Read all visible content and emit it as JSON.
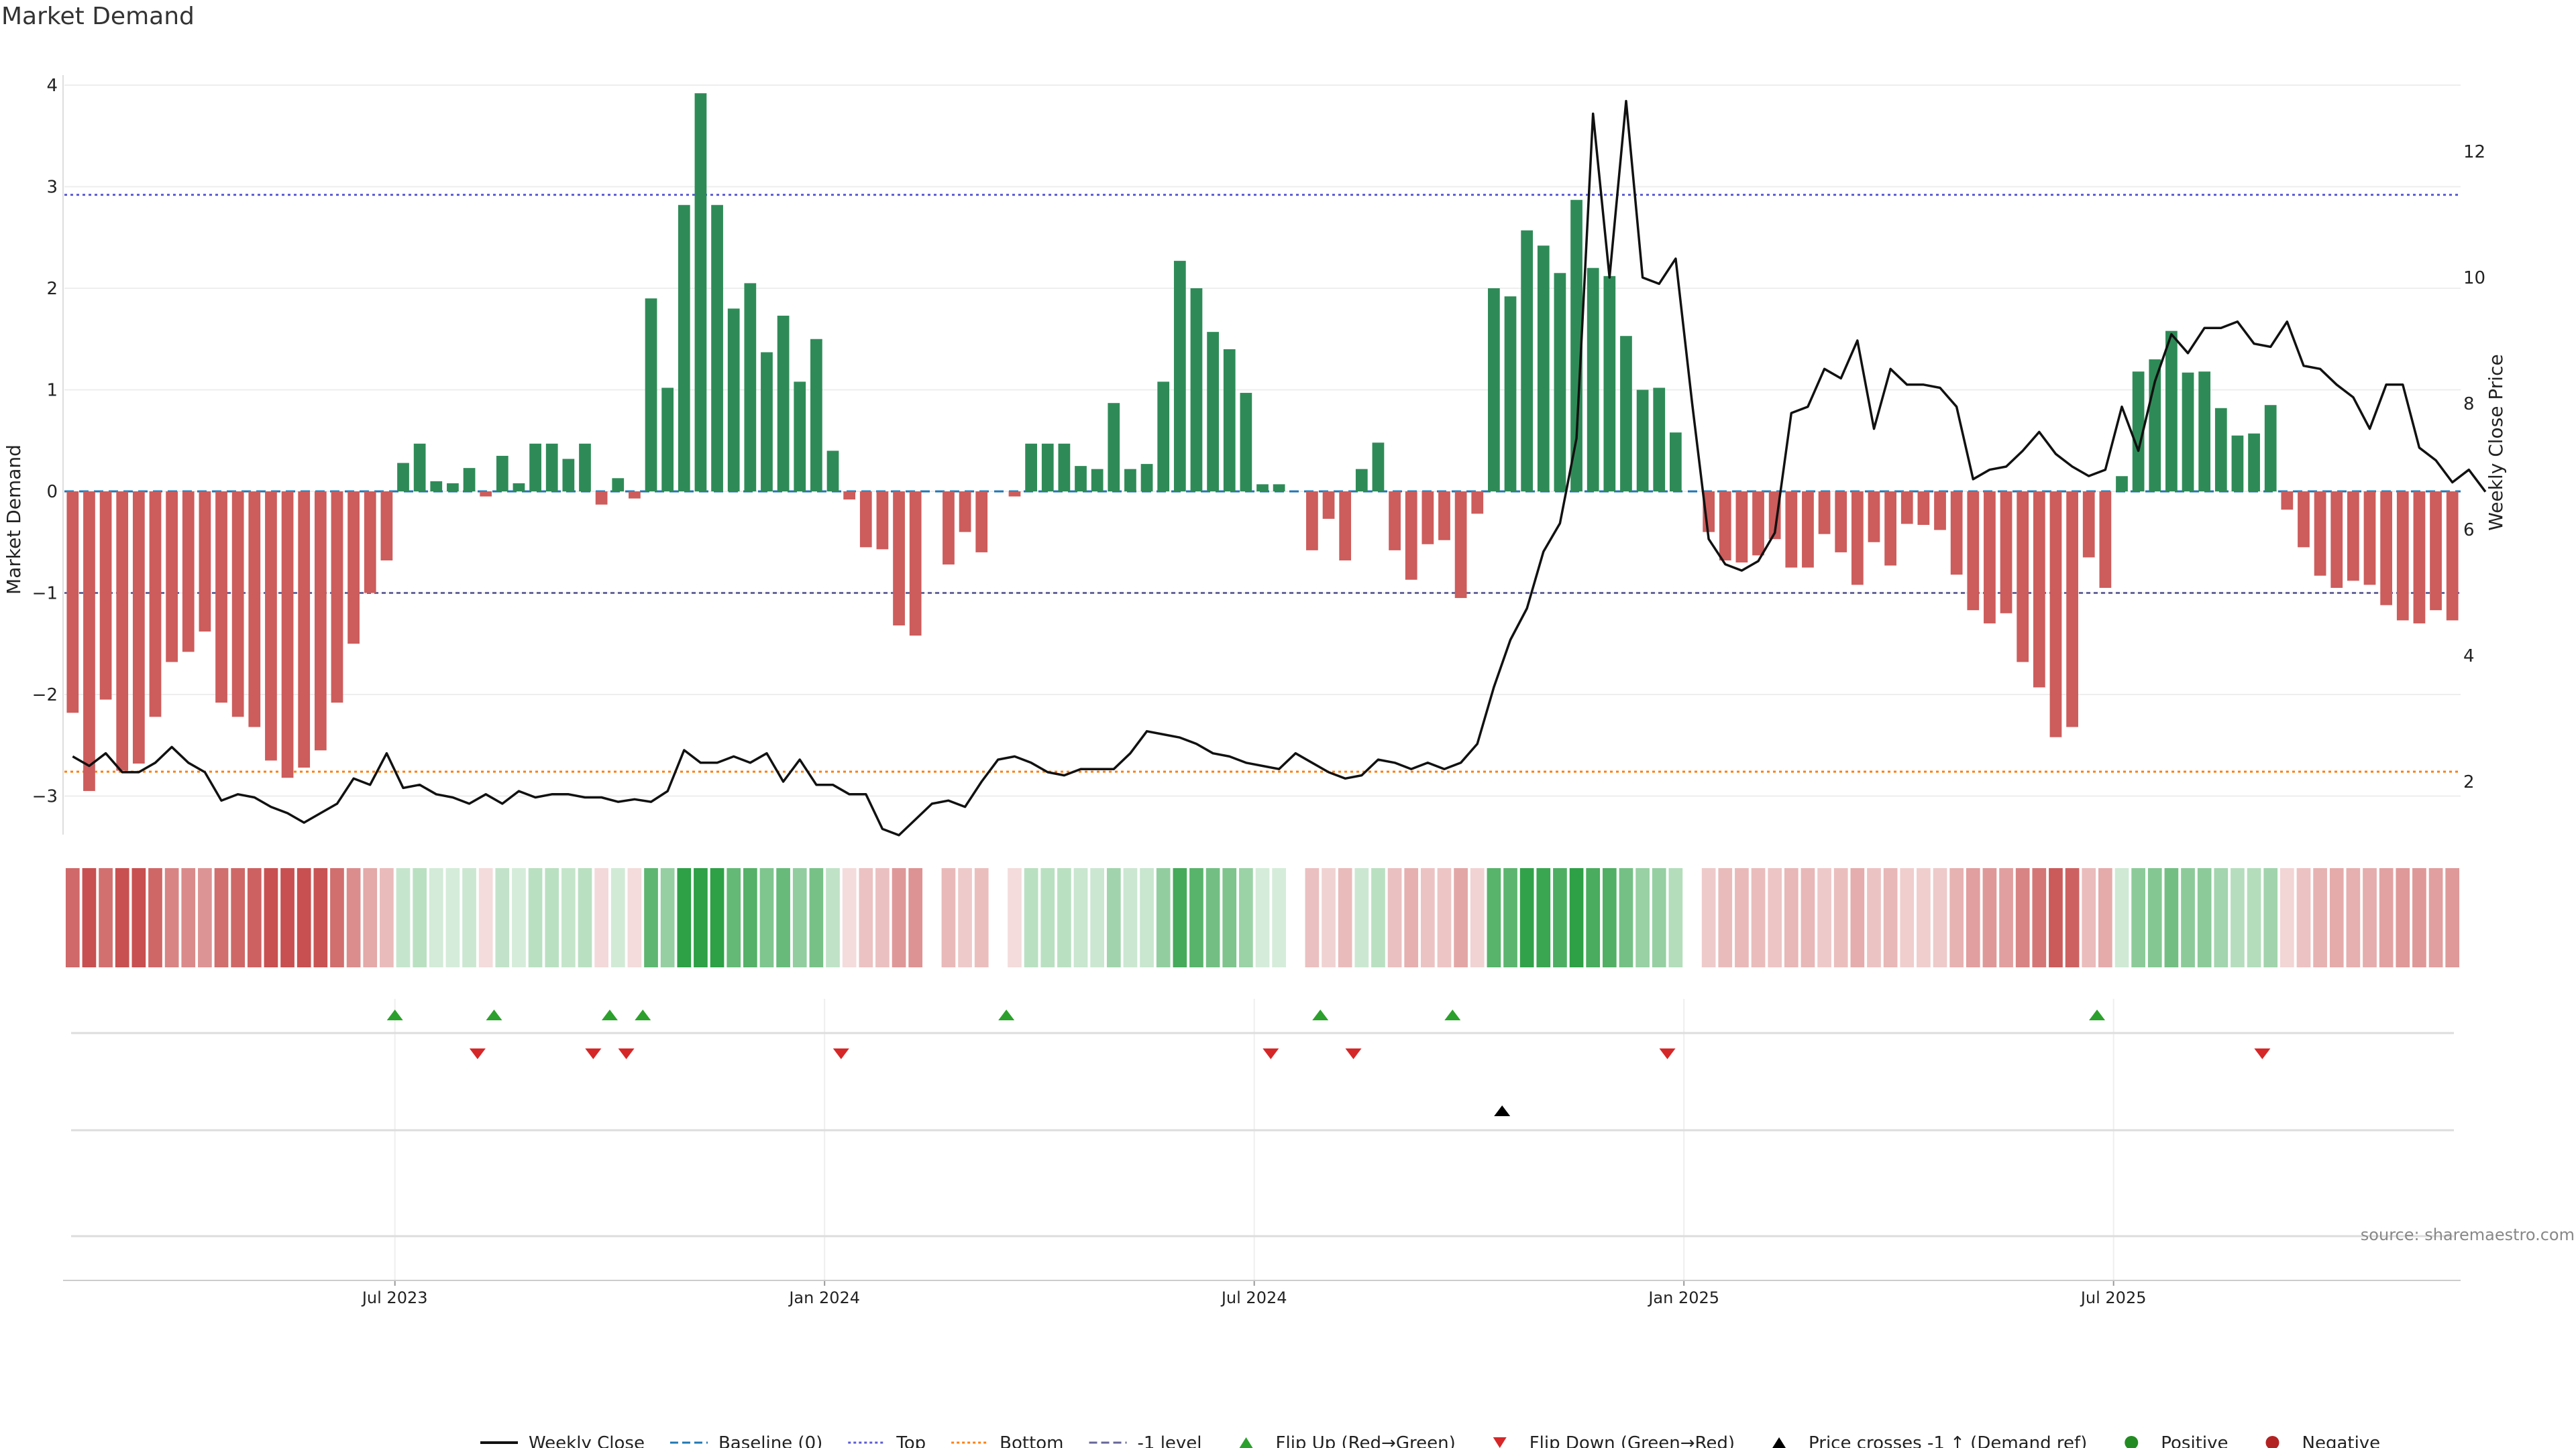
{
  "chart_data": {
    "type": "bar",
    "title": "Market Demand",
    "ylabel": "Market Demand",
    "y2label": "Weekly Close Price",
    "ylim": [
      -3.3,
      4.1
    ],
    "y2lim": [
      1.6,
      13.2
    ],
    "yticks": [
      "4",
      "3",
      "2",
      "1",
      "0",
      "−1",
      "−2",
      "−3"
    ],
    "yticks_values": [
      4,
      3,
      2,
      1,
      0,
      -1,
      -2,
      -3
    ],
    "y2ticks": [
      "12",
      "10",
      "8",
      "6",
      "4",
      "2"
    ],
    "y2ticks_values": [
      12,
      10,
      8,
      6,
      4,
      2
    ],
    "x_ticks": [
      {
        "label": "Jul 2023",
        "week": 20
      },
      {
        "label": "Jan 2024",
        "week": 46
      },
      {
        "label": "Jul 2024",
        "week": 72
      },
      {
        "label": "Jan 2025",
        "week": 98
      },
      {
        "label": "Jul 2025",
        "week": 124
      }
    ],
    "reference_lines": {
      "baseline": 0,
      "top": 2.92,
      "bottom": -2.76,
      "minus_one": -1.0
    },
    "colors": {
      "positive": "#2e8b57",
      "negative": "#cd5c5c",
      "price": "#111111",
      "baseline": "#1f77b4",
      "top": "#5b5bd6",
      "bottom": "#ff7f0e",
      "minus_one": "#666699",
      "flip_up": "#2ca02c",
      "flip_down": "#d62728",
      "cross": "#000000"
    },
    "demand": [
      -2.18,
      -2.95,
      -2.05,
      -2.75,
      -2.68,
      -2.22,
      -1.68,
      -1.58,
      -1.38,
      -2.08,
      -2.22,
      -2.32,
      -2.65,
      -2.82,
      -2.72,
      -2.55,
      -2.08,
      -1.5,
      -1.0,
      -0.68,
      0.28,
      0.47,
      0.1,
      0.08,
      0.23,
      -0.05,
      0.35,
      0.08,
      0.47,
      0.47,
      0.32,
      0.47,
      -0.13,
      0.13,
      -0.07,
      1.9,
      1.02,
      2.82,
      3.92,
      2.82,
      1.8,
      2.05,
      1.37,
      1.73,
      1.08,
      1.5,
      0.4,
      -0.08,
      -0.55,
      -0.57,
      -1.32,
      -1.42,
      0.0,
      -0.72,
      -0.4,
      -0.6,
      0.0,
      -0.05,
      0.47,
      0.47,
      0.47,
      0.25,
      0.22,
      0.87,
      0.22,
      0.27,
      1.08,
      2.27,
      2.0,
      1.57,
      1.4,
      0.97,
      0.07,
      0.07,
      0.0,
      -0.58,
      -0.27,
      -0.68,
      0.22,
      0.48,
      -0.58,
      -0.87,
      -0.52,
      -0.48,
      -1.05,
      -0.22,
      2.0,
      1.92,
      2.57,
      2.42,
      2.15,
      2.87,
      2.2,
      2.12,
      1.53,
      1.0,
      1.02,
      0.58,
      0.0,
      -0.4,
      -0.68,
      -0.7,
      -0.63,
      -0.47,
      -0.75,
      -0.75,
      -0.42,
      -0.6,
      -0.92,
      -0.5,
      -0.73,
      -0.32,
      -0.33,
      -0.38,
      -0.82,
      -1.17,
      -1.3,
      -1.2,
      -1.68,
      -1.93,
      -2.42,
      -2.32,
      -0.65,
      -0.95,
      0.15,
      1.18,
      1.3,
      1.58,
      1.17,
      1.18,
      0.82,
      0.55,
      0.57,
      0.85,
      -0.18,
      -0.55,
      -0.83,
      -0.95,
      -0.88,
      -0.92,
      -1.12,
      -1.27,
      -1.3,
      -1.17,
      -1.27
    ],
    "price": [
      2.4,
      2.25,
      2.45,
      2.15,
      2.15,
      2.3,
      2.55,
      2.3,
      2.15,
      1.7,
      1.8,
      1.75,
      1.6,
      1.5,
      1.35,
      1.5,
      1.65,
      2.05,
      1.95,
      2.45,
      1.9,
      1.95,
      1.8,
      1.75,
      1.65,
      1.8,
      1.65,
      1.85,
      1.75,
      1.8,
      1.8,
      1.75,
      1.75,
      1.68,
      1.72,
      1.68,
      1.85,
      2.5,
      2.3,
      2.3,
      2.4,
      2.3,
      2.45,
      2.0,
      2.35,
      1.95,
      1.95,
      1.8,
      1.8,
      1.25,
      1.15,
      1.4,
      1.65,
      1.7,
      1.6,
      2.0,
      2.35,
      2.4,
      2.3,
      2.15,
      2.1,
      2.2,
      2.2,
      2.2,
      2.45,
      2.8,
      2.75,
      2.7,
      2.6,
      2.45,
      2.4,
      2.3,
      2.25,
      2.2,
      2.45,
      2.3,
      2.15,
      2.05,
      2.1,
      2.35,
      2.3,
      2.2,
      2.3,
      2.2,
      2.3,
      2.6,
      3.5,
      4.25,
      4.75,
      5.65,
      6.1,
      7.45,
      12.6,
      10.0,
      12.8,
      10.0,
      9.9,
      10.3,
      8.0,
      5.85,
      5.45,
      5.35,
      5.5,
      5.95,
      7.85,
      7.95,
      8.55,
      8.4,
      9.0,
      7.6,
      8.55,
      8.3,
      8.3,
      8.25,
      7.95,
      6.8,
      6.95,
      7.0,
      7.25,
      7.55,
      7.2,
      7.0,
      6.85,
      6.95,
      7.95,
      7.25,
      8.35,
      9.1,
      8.8,
      9.2,
      9.2,
      9.3,
      8.95,
      8.9,
      9.3,
      8.6,
      8.55,
      8.3,
      8.1,
      7.6,
      8.3,
      8.3,
      7.3,
      7.1,
      6.75,
      6.95,
      6.6
    ],
    "flip_up_weeks": [
      20,
      26,
      33,
      35,
      57,
      76,
      84,
      123
    ],
    "flip_down_weeks": [
      25,
      32,
      34,
      47,
      73,
      78,
      97,
      133
    ],
    "price_cross_weeks": [
      87
    ],
    "legend": [
      {
        "label": "Weekly Close",
        "kind": "line",
        "color": "#111111"
      },
      {
        "label": "Baseline (0)",
        "kind": "dashed",
        "color": "#1f77b4"
      },
      {
        "label": "Top",
        "kind": "dotted",
        "color": "#5b5bd6"
      },
      {
        "label": "Bottom",
        "kind": "dotted",
        "color": "#ff7f0e"
      },
      {
        "label": "-1 level",
        "kind": "dashed",
        "color": "#666699"
      },
      {
        "label": "Flip Up (Red→Green)",
        "kind": "tri-up",
        "color": "#2ca02c"
      },
      {
        "label": "Flip Down (Green→Red)",
        "kind": "tri-down",
        "color": "#d62728"
      },
      {
        "label": "Price crosses -1 ↑ (Demand ref)",
        "kind": "tri-up",
        "color": "#000000"
      },
      {
        "label": "Positive",
        "kind": "dot",
        "color": "#228b22"
      },
      {
        "label": "Negative",
        "kind": "dot",
        "color": "#b22222"
      }
    ],
    "source": "source: sharemaestro.com"
  }
}
